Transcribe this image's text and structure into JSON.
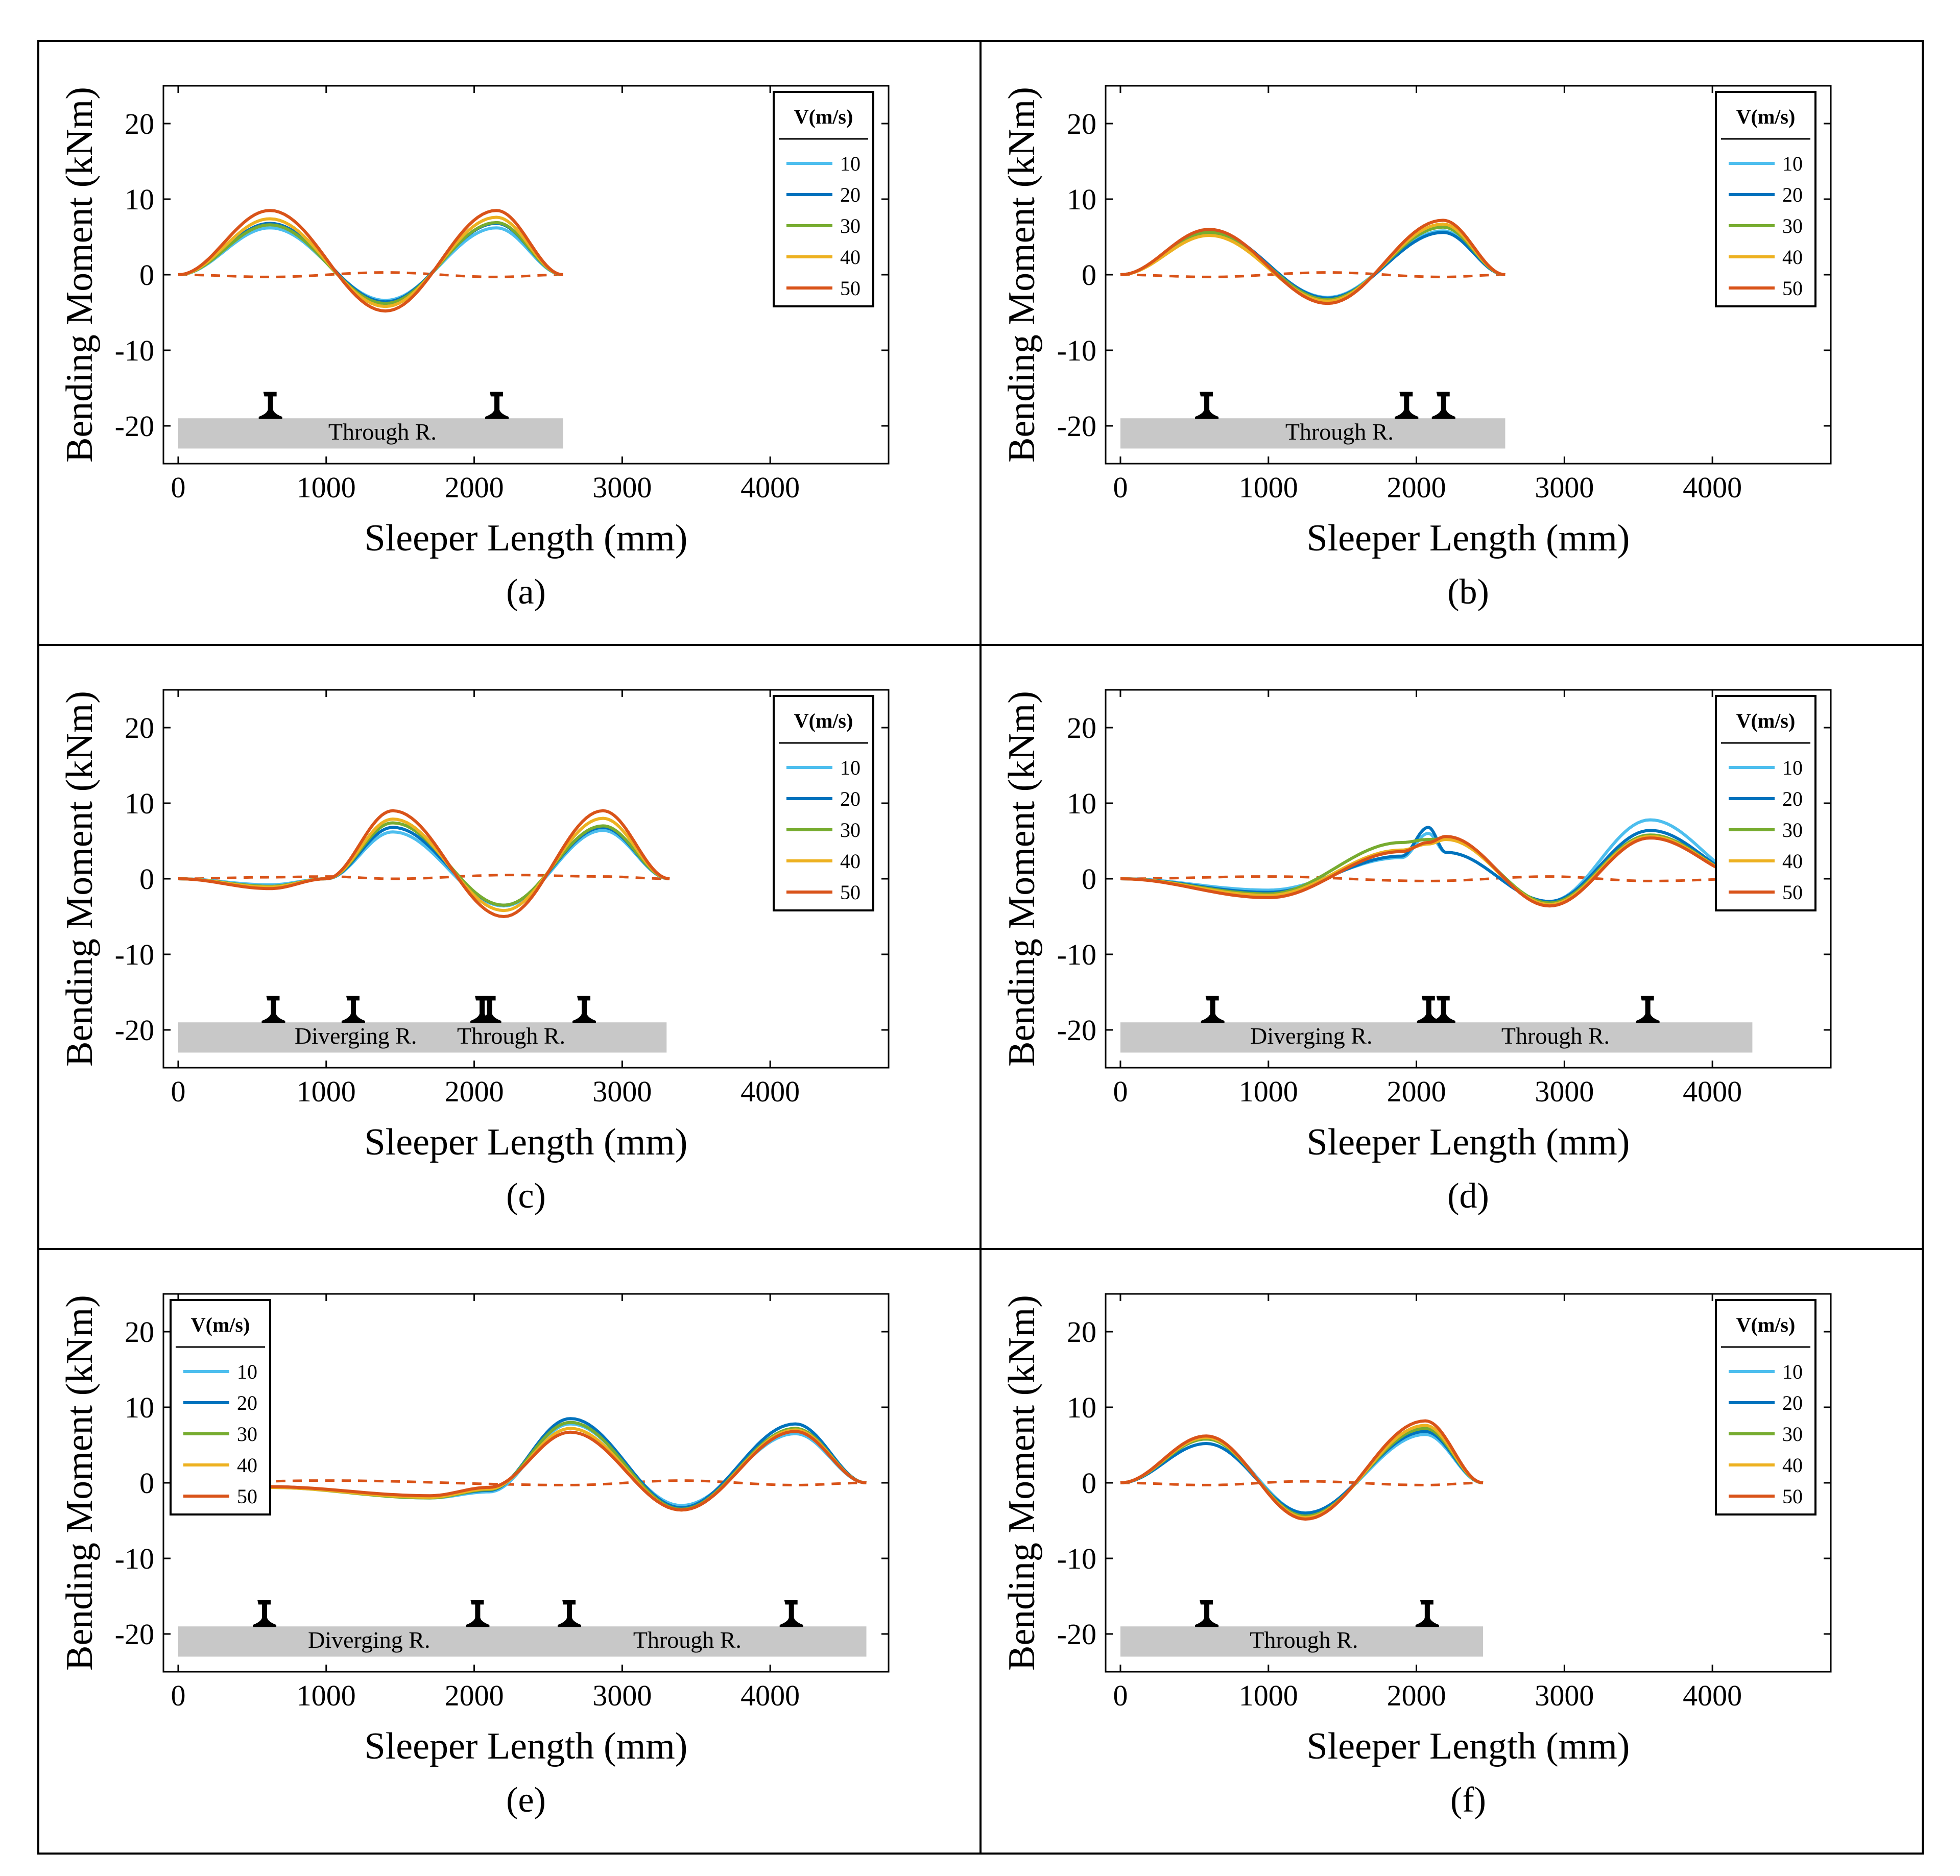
{
  "figure": {
    "x_label": "Sleeper Length (mm)",
    "y_label": "Bending Moment (kNm)",
    "legend_title": "V(m/s)",
    "series_names": [
      "10",
      "20",
      "30",
      "40",
      "50"
    ],
    "series_colors": [
      "#4dbeee",
      "#0072bd",
      "#77ac30",
      "#edb120",
      "#d95319"
    ],
    "rail_color": "#000000",
    "sleeper_color": "#c8c8c8"
  },
  "chart_data": [
    {
      "type": "line",
      "panel_label": "(a)",
      "xlim": [
        -100,
        4800
      ],
      "ylim": [
        -25,
        25
      ],
      "x_ticks": [
        0,
        1000,
        2000,
        3000,
        4000
      ],
      "y_ticks": [
        20,
        10,
        0,
        -10,
        -20
      ],
      "legend_position": "top-right",
      "sleeper_length": 2600,
      "rail_positions": [
        620,
        2150
      ],
      "sleeper_labels": [
        {
          "text": "Through R.",
          "x": 1380
        }
      ],
      "supports": [
        0,
        620,
        1400,
        2150,
        2600
      ],
      "series": [
        {
          "name": "10",
          "values": [
            0,
            6.2,
            -3.4,
            6.2,
            0
          ]
        },
        {
          "name": "20",
          "values": [
            0,
            6.8,
            -3.6,
            6.8,
            0
          ]
        },
        {
          "name": "30",
          "values": [
            0,
            6.6,
            -3.8,
            6.9,
            0
          ]
        },
        {
          "name": "40",
          "values": [
            0,
            7.4,
            -4.2,
            7.6,
            0
          ]
        },
        {
          "name": "50",
          "values": [
            0,
            8.5,
            -4.8,
            8.5,
            0
          ]
        }
      ],
      "dashed": {
        "x": [
          0,
          620,
          1400,
          2150,
          2600
        ],
        "y": [
          0,
          -0.3,
          0.3,
          -0.3,
          0
        ]
      }
    },
    {
      "type": "line",
      "panel_label": "(b)",
      "xlim": [
        -100,
        4800
      ],
      "ylim": [
        -25,
        25
      ],
      "x_ticks": [
        0,
        1000,
        2000,
        3000,
        4000
      ],
      "y_ticks": [
        20,
        10,
        0,
        -10,
        -20
      ],
      "legend_position": "top-right",
      "sleeper_length": 2600,
      "rail_positions": [
        580,
        1930,
        2180
      ],
      "sleeper_labels": [
        {
          "text": "Through R.",
          "x": 1480
        }
      ],
      "supports": [
        0,
        600,
        1400,
        2180,
        2600
      ],
      "series": [
        {
          "name": "10",
          "values": [
            0,
            5.4,
            -3.0,
            5.8,
            0
          ]
        },
        {
          "name": "20",
          "values": [
            0,
            5.8,
            -3.1,
            5.6,
            0
          ]
        },
        {
          "name": "30",
          "values": [
            0,
            5.6,
            -3.3,
            6.3,
            0
          ]
        },
        {
          "name": "40",
          "values": [
            0,
            5.2,
            -3.5,
            6.7,
            0
          ]
        },
        {
          "name": "50",
          "values": [
            0,
            6.0,
            -3.8,
            7.2,
            0
          ]
        }
      ],
      "dashed": {
        "x": [
          0,
          600,
          1400,
          2180,
          2600
        ],
        "y": [
          0,
          -0.3,
          0.3,
          -0.3,
          0
        ]
      }
    },
    {
      "type": "line",
      "panel_label": "(c)",
      "xlim": [
        -100,
        4800
      ],
      "ylim": [
        -25,
        25
      ],
      "x_ticks": [
        0,
        1000,
        2000,
        3000,
        4000
      ],
      "y_ticks": [
        20,
        10,
        0,
        -10,
        -20
      ],
      "legend_position": "top-right",
      "sleeper_length": 3300,
      "rail_positions": [
        640,
        1180,
        2050,
        2100,
        2740
      ],
      "sleeper_labels": [
        {
          "text": "Diverging R.",
          "x": 1200
        },
        {
          "text": "Through R.",
          "x": 2250
        }
      ],
      "supports": [
        0,
        620,
        1000,
        1450,
        2200,
        2870,
        3320
      ],
      "series": [
        {
          "name": "10",
          "values": [
            0,
            -0.8,
            0,
            6.2,
            -3.6,
            6.4,
            0
          ]
        },
        {
          "name": "20",
          "values": [
            0,
            -1.0,
            0,
            6.8,
            -3.5,
            6.8,
            0
          ]
        },
        {
          "name": "30",
          "values": [
            0,
            -1.0,
            0,
            7.4,
            -3.5,
            7.0,
            0
          ]
        },
        {
          "name": "40",
          "values": [
            0,
            -1.1,
            0,
            7.9,
            -4.2,
            8.0,
            0
          ]
        },
        {
          "name": "50",
          "values": [
            0,
            -1.3,
            0,
            9.0,
            -5.0,
            9.0,
            0
          ]
        }
      ],
      "dashed": {
        "x": [
          0,
          620,
          1000,
          1450,
          2250,
          2870,
          3320
        ],
        "y": [
          0,
          0.2,
          0.3,
          0,
          0.5,
          0.3,
          0
        ]
      }
    },
    {
      "type": "line",
      "panel_label": "(d)",
      "xlim": [
        -100,
        4800
      ],
      "ylim": [
        -25,
        25
      ],
      "x_ticks": [
        0,
        1000,
        2000,
        3000,
        4000
      ],
      "y_ticks": [
        20,
        10,
        0,
        -10,
        -20
      ],
      "legend_position": "top-right",
      "sleeper_length": 4270,
      "rail_positions": [
        620,
        2080,
        2180,
        3560
      ],
      "sleeper_labels": [
        {
          "text": "Diverging R.",
          "x": 1290
        },
        {
          "text": "Through R.",
          "x": 2940
        }
      ],
      "supports": [
        0,
        1000,
        1900,
        2080,
        2200,
        2900,
        3580,
        4270
      ],
      "series": [
        {
          "name": "10",
          "values": [
            0,
            -1.5,
            2.8,
            6.0,
            3.5,
            -3.0,
            7.8,
            0
          ]
        },
        {
          "name": "20",
          "values": [
            0,
            -1.8,
            3.0,
            6.8,
            3.5,
            -3.0,
            6.4,
            0
          ]
        },
        {
          "name": "30",
          "values": [
            0,
            -2.0,
            4.8,
            5.2,
            5.3,
            -3.2,
            5.8,
            0
          ]
        },
        {
          "name": "40",
          "values": [
            0,
            -2.2,
            3.8,
            4.6,
            5.2,
            -3.4,
            5.6,
            0
          ]
        },
        {
          "name": "50",
          "values": [
            0,
            -2.5,
            3.6,
            4.8,
            5.6,
            -3.6,
            5.4,
            0
          ]
        }
      ],
      "dashed": {
        "x": [
          0,
          1000,
          2080,
          2900,
          3580,
          4270
        ],
        "y": [
          0,
          0.3,
          -0.3,
          0.3,
          -0.3,
          0
        ]
      }
    },
    {
      "type": "line",
      "panel_label": "(e)",
      "xlim": [
        -100,
        4800
      ],
      "ylim": [
        -25,
        25
      ],
      "x_ticks": [
        0,
        1000,
        2000,
        3000,
        4000
      ],
      "y_ticks": [
        20,
        10,
        0,
        -10,
        -20
      ],
      "legend_position": "top-left",
      "sleeper_length": 4650,
      "rail_positions": [
        580,
        2020,
        2640,
        4140
      ],
      "sleeper_labels": [
        {
          "text": "Diverging R.",
          "x": 1290
        },
        {
          "text": "Through R.",
          "x": 3440
        }
      ],
      "supports": [
        0,
        600,
        1700,
        2100,
        2650,
        3400,
        4170,
        4650
      ],
      "series": [
        {
          "name": "10",
          "values": [
            0,
            -0.5,
            -2.0,
            -1.2,
            7.8,
            -3.0,
            6.5,
            0
          ]
        },
        {
          "name": "20",
          "values": [
            0,
            -0.5,
            -1.9,
            -1.0,
            8.5,
            -3.3,
            7.8,
            0
          ]
        },
        {
          "name": "30",
          "values": [
            0,
            -0.6,
            -2.0,
            -0.9,
            8.0,
            -3.5,
            7.2,
            0
          ]
        },
        {
          "name": "40",
          "values": [
            0,
            -0.6,
            -1.9,
            -0.8,
            7.2,
            -3.6,
            7.0,
            0
          ]
        },
        {
          "name": "50",
          "values": [
            0,
            -0.5,
            -1.7,
            -0.6,
            6.7,
            -3.6,
            6.8,
            0
          ]
        }
      ],
      "dashed": {
        "x": [
          0,
          1000,
          2650,
          3400,
          4170,
          4650
        ],
        "y": [
          0,
          0.3,
          -0.3,
          0.3,
          -0.3,
          0
        ]
      }
    },
    {
      "type": "line",
      "panel_label": "(f)",
      "xlim": [
        -100,
        4800
      ],
      "ylim": [
        -25,
        25
      ],
      "x_ticks": [
        0,
        1000,
        2000,
        3000,
        4000
      ],
      "y_ticks": [
        20,
        10,
        0,
        -10,
        -20
      ],
      "legend_position": "top-right",
      "sleeper_length": 2450,
      "rail_positions": [
        580,
        2070
      ],
      "sleeper_labels": [
        {
          "text": "Through R.",
          "x": 1240
        }
      ],
      "supports": [
        0,
        580,
        1250,
        2060,
        2450
      ],
      "series": [
        {
          "name": "10",
          "values": [
            0,
            5.8,
            -4.0,
            6.4,
            0
          ]
        },
        {
          "name": "20",
          "values": [
            0,
            5.2,
            -4.0,
            6.8,
            0
          ]
        },
        {
          "name": "30",
          "values": [
            0,
            5.8,
            -4.4,
            7.2,
            0
          ]
        },
        {
          "name": "40",
          "values": [
            0,
            6.0,
            -4.6,
            7.6,
            0
          ]
        },
        {
          "name": "50",
          "values": [
            0,
            6.2,
            -4.8,
            8.2,
            0
          ]
        }
      ],
      "dashed": {
        "x": [
          0,
          580,
          1250,
          2060,
          2450
        ],
        "y": [
          0,
          -0.3,
          0.2,
          -0.3,
          0
        ]
      }
    }
  ]
}
